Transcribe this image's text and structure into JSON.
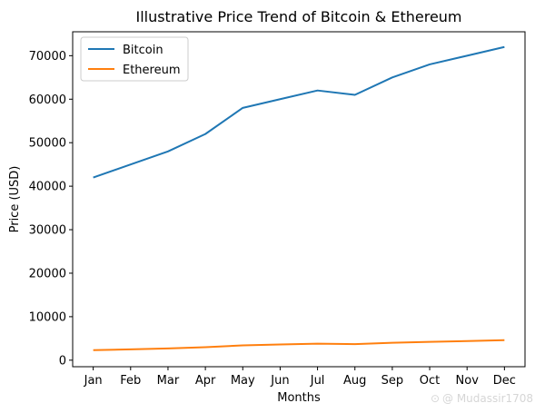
{
  "chart_data": {
    "type": "line",
    "title": "Illustrative Price Trend of Bitcoin & Ethereum",
    "xlabel": "Months",
    "ylabel": "Price (USD)",
    "categories": [
      "Jan",
      "Feb",
      "Mar",
      "Apr",
      "May",
      "Jun",
      "Jul",
      "Aug",
      "Sep",
      "Oct",
      "Nov",
      "Dec"
    ],
    "ylim": [
      -1500,
      75500
    ],
    "yticks": [
      0,
      10000,
      20000,
      30000,
      40000,
      50000,
      60000,
      70000
    ],
    "grid": false,
    "legend_position": "upper-left",
    "series": [
      {
        "name": "Bitcoin",
        "color": "#1f77b4",
        "values": [
          42000,
          45000,
          48000,
          52000,
          58000,
          60000,
          62000,
          61000,
          65000,
          68000,
          70000,
          72000
        ]
      },
      {
        "name": "Ethereum",
        "color": "#ff7f0e",
        "values": [
          2300,
          2500,
          2700,
          3000,
          3400,
          3600,
          3800,
          3700,
          4000,
          4200,
          4400,
          4600
        ]
      }
    ]
  },
  "watermark": "@ Mudassir1708"
}
